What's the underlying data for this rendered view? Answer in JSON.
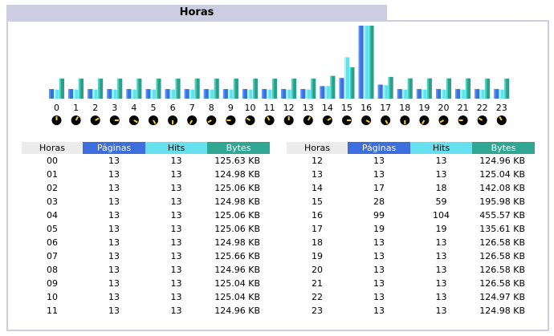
{
  "title": "Horas",
  "colors": {
    "paginas": "#3c6ede",
    "hits": "#66dfee",
    "bytes": "#2e9e8b",
    "header_bg": "#cccde1"
  },
  "table_headers": {
    "horas": "Horas",
    "paginas": "Páginas",
    "hits": "Hits",
    "bytes": "Bytes"
  },
  "rows": [
    {
      "hora": "00",
      "paginas": "13",
      "hits": "13",
      "bytes": "125.63 KB"
    },
    {
      "hora": "01",
      "paginas": "13",
      "hits": "13",
      "bytes": "124.98 KB"
    },
    {
      "hora": "02",
      "paginas": "13",
      "hits": "13",
      "bytes": "125.06 KB"
    },
    {
      "hora": "03",
      "paginas": "13",
      "hits": "13",
      "bytes": "124.98 KB"
    },
    {
      "hora": "04",
      "paginas": "13",
      "hits": "13",
      "bytes": "125.06 KB"
    },
    {
      "hora": "05",
      "paginas": "13",
      "hits": "13",
      "bytes": "125.06 KB"
    },
    {
      "hora": "06",
      "paginas": "13",
      "hits": "13",
      "bytes": "124.98 KB"
    },
    {
      "hora": "07",
      "paginas": "13",
      "hits": "13",
      "bytes": "125.66 KB"
    },
    {
      "hora": "08",
      "paginas": "13",
      "hits": "13",
      "bytes": "124.96 KB"
    },
    {
      "hora": "09",
      "paginas": "13",
      "hits": "13",
      "bytes": "125.04 KB"
    },
    {
      "hora": "10",
      "paginas": "13",
      "hits": "13",
      "bytes": "125.04 KB"
    },
    {
      "hora": "11",
      "paginas": "13",
      "hits": "13",
      "bytes": "124.96 KB"
    },
    {
      "hora": "12",
      "paginas": "13",
      "hits": "13",
      "bytes": "124.96 KB"
    },
    {
      "hora": "13",
      "paginas": "13",
      "hits": "13",
      "bytes": "125.04 KB"
    },
    {
      "hora": "14",
      "paginas": "17",
      "hits": "18",
      "bytes": "142.08 KB"
    },
    {
      "hora": "15",
      "paginas": "28",
      "hits": "59",
      "bytes": "195.98 KB"
    },
    {
      "hora": "16",
      "paginas": "99",
      "hits": "104",
      "bytes": "455.57 KB"
    },
    {
      "hora": "17",
      "paginas": "19",
      "hits": "19",
      "bytes": "135.61 KB"
    },
    {
      "hora": "18",
      "paginas": "13",
      "hits": "13",
      "bytes": "126.58 KB"
    },
    {
      "hora": "19",
      "paginas": "13",
      "hits": "13",
      "bytes": "126.58 KB"
    },
    {
      "hora": "20",
      "paginas": "13",
      "hits": "13",
      "bytes": "126.58 KB"
    },
    {
      "hora": "21",
      "paginas": "13",
      "hits": "13",
      "bytes": "126.58 KB"
    },
    {
      "hora": "22",
      "paginas": "13",
      "hits": "13",
      "bytes": "124.97 KB"
    },
    {
      "hora": "23",
      "paginas": "13",
      "hits": "13",
      "bytes": "124.98 KB"
    }
  ],
  "chart_data": {
    "type": "bar",
    "title": "Horas",
    "categories": [
      "0",
      "1",
      "2",
      "3",
      "4",
      "5",
      "6",
      "7",
      "8",
      "9",
      "10",
      "11",
      "12",
      "13",
      "14",
      "15",
      "16",
      "17",
      "18",
      "19",
      "20",
      "21",
      "22",
      "23"
    ],
    "series": [
      {
        "name": "Páginas",
        "color": "#3c6ede",
        "values": [
          13,
          13,
          13,
          13,
          13,
          13,
          13,
          13,
          13,
          13,
          13,
          13,
          13,
          13,
          17,
          28,
          99,
          19,
          13,
          13,
          13,
          13,
          13,
          13
        ]
      },
      {
        "name": "Hits",
        "color": "#66dfee",
        "values": [
          13,
          13,
          13,
          13,
          13,
          13,
          13,
          13,
          13,
          13,
          13,
          13,
          13,
          13,
          18,
          59,
          104,
          19,
          13,
          13,
          13,
          13,
          13,
          13
        ]
      },
      {
        "name": "Bytes",
        "unit": "KB",
        "color": "#2e9e8b",
        "values": [
          125.63,
          124.98,
          125.06,
          124.98,
          125.06,
          125.06,
          124.98,
          125.66,
          124.96,
          125.04,
          125.04,
          124.96,
          124.96,
          125.04,
          142.08,
          195.98,
          455.57,
          135.61,
          126.58,
          126.58,
          126.58,
          126.58,
          124.97,
          124.98
        ]
      }
    ],
    "clock_icons": "clock-icon per hour",
    "grid": false,
    "legend": "table below"
  }
}
